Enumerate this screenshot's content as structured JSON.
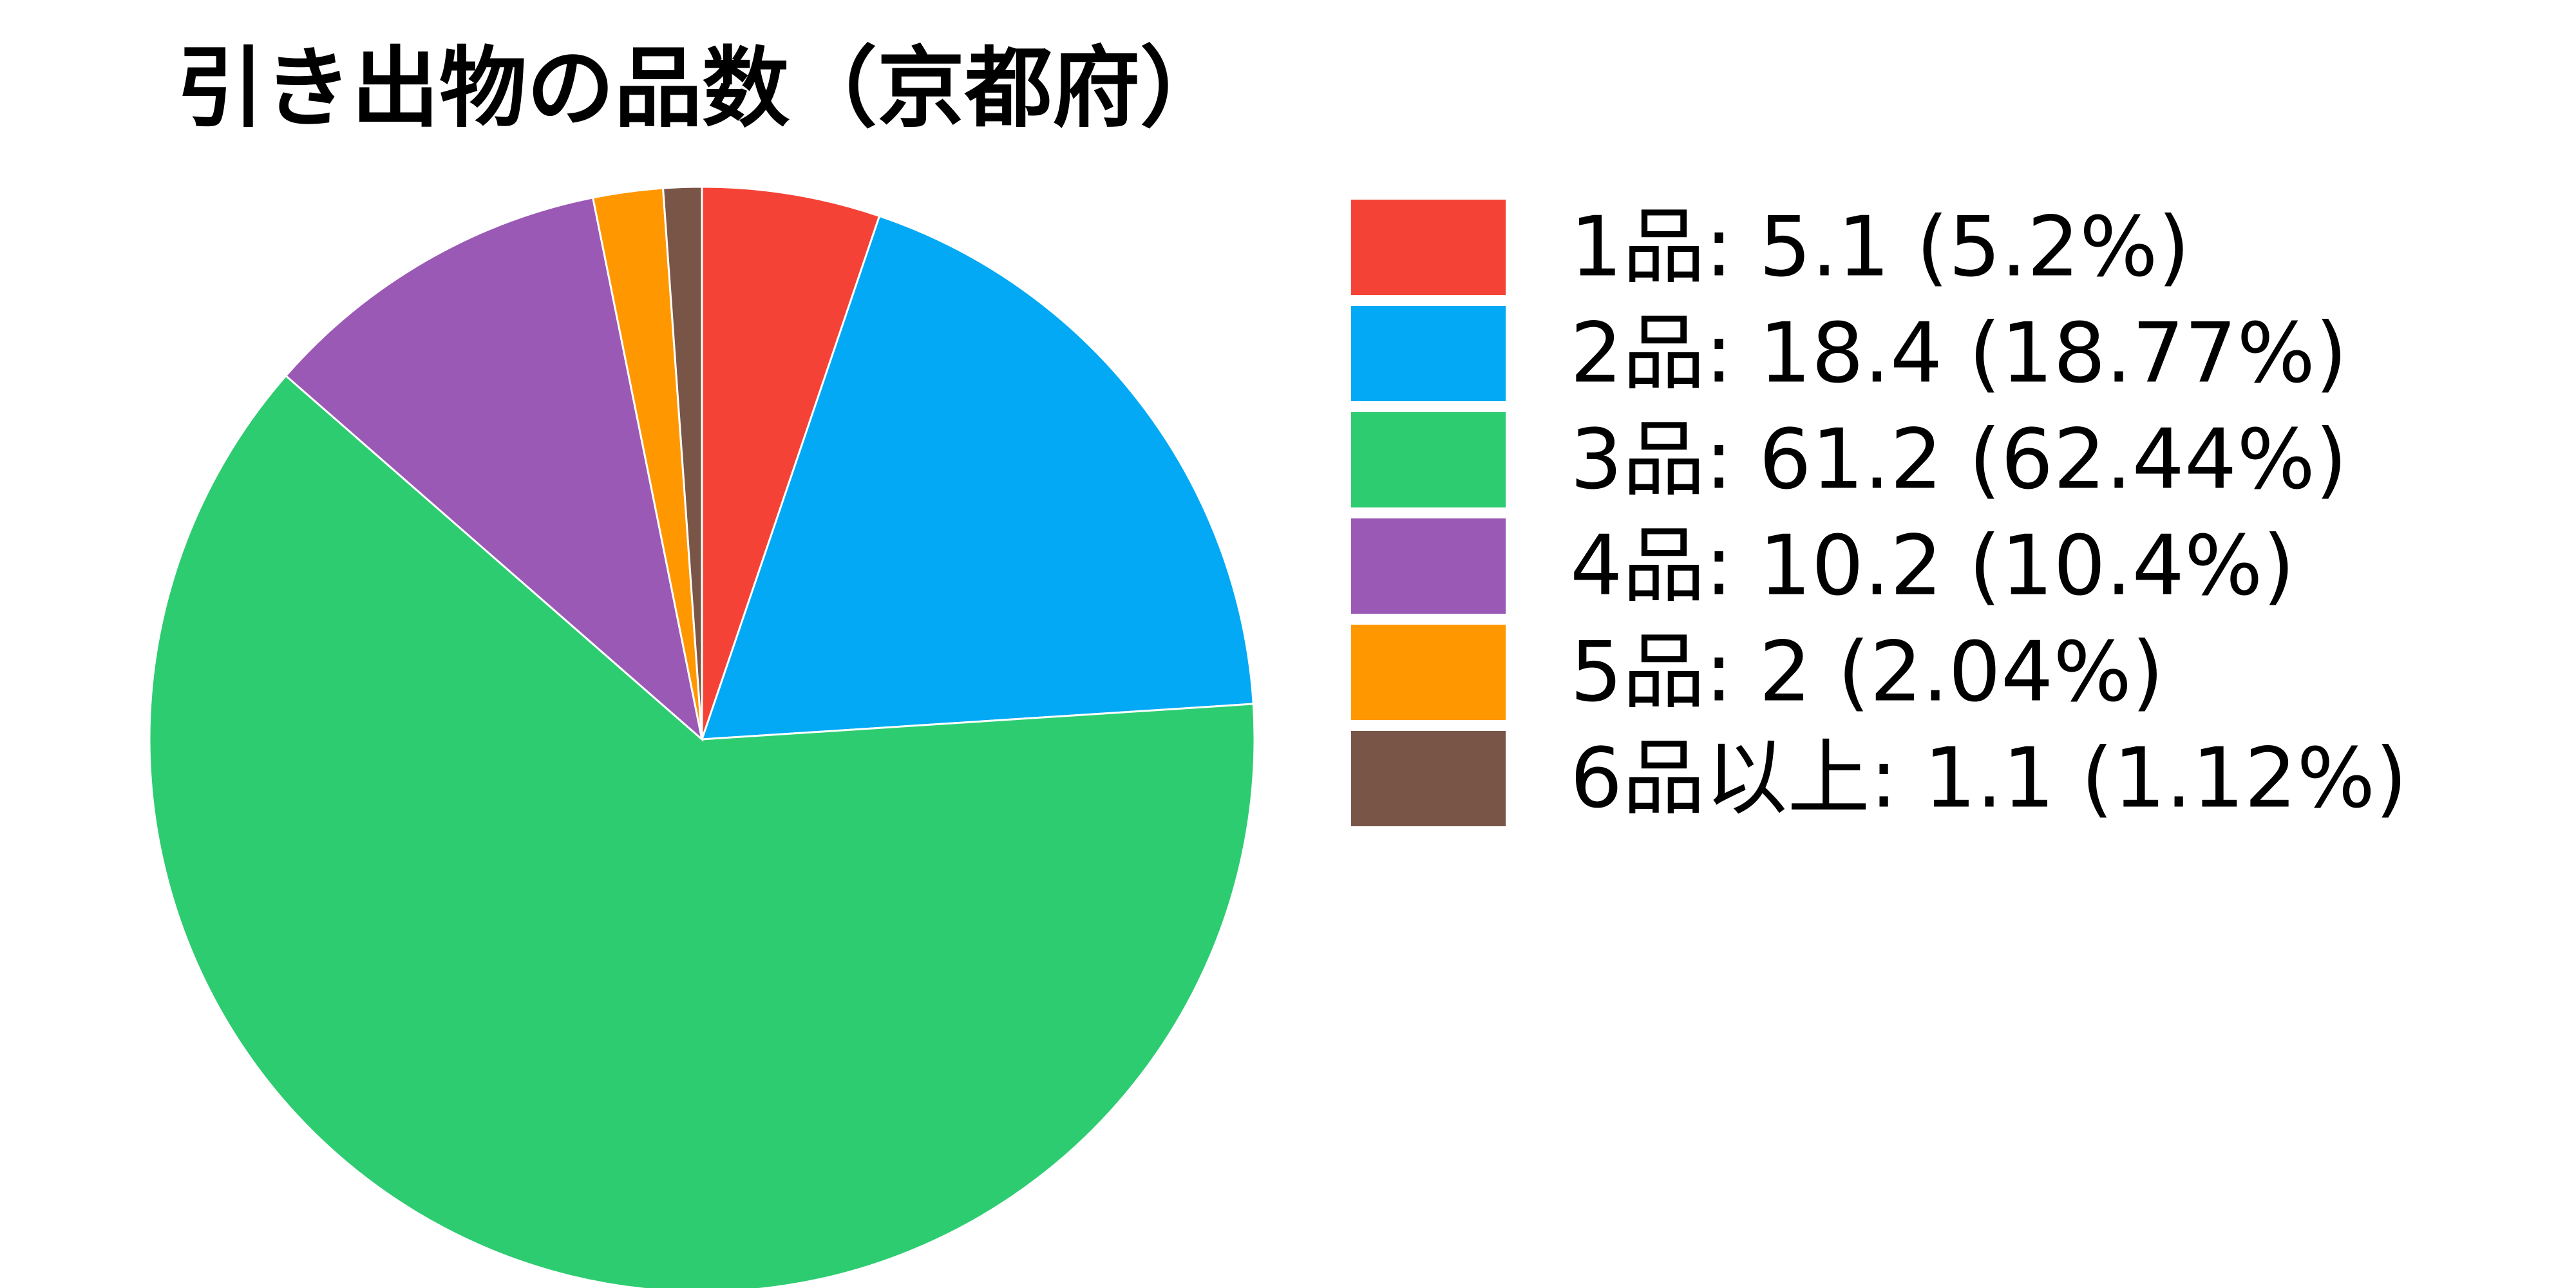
{
  "chart_data": {
    "type": "pie",
    "title": "引き出物の品数（京都府）",
    "legend_position": "right",
    "slices": [
      {
        "label": "1品",
        "value": 5.1,
        "percent_text": "5.2%",
        "color": "#F44336"
      },
      {
        "label": "2品",
        "value": 18.4,
        "percent_text": "18.77%",
        "color": "#03A9F4"
      },
      {
        "label": "3品",
        "value": 61.2,
        "percent_text": "62.44%",
        "color": "#2ECC71"
      },
      {
        "label": "4品",
        "value": 10.2,
        "percent_text": "10.4%",
        "color": "#9B59B6"
      },
      {
        "label": "5品",
        "value": 2,
        "percent_text": "2.04%",
        "color": "#FF9800"
      },
      {
        "label": "6品以上",
        "value": 1.1,
        "percent_text": "1.12%",
        "color": "#795548"
      }
    ],
    "legend_entries": [
      "1品: 5.1 (5.2%)",
      "2品: 18.4 (18.77%)",
      "3品: 61.2 (62.44%)",
      "4品: 10.2 (10.4%)",
      "5品: 2 (2.04%)",
      "6品以上: 1.1 (1.12%)"
    ]
  }
}
